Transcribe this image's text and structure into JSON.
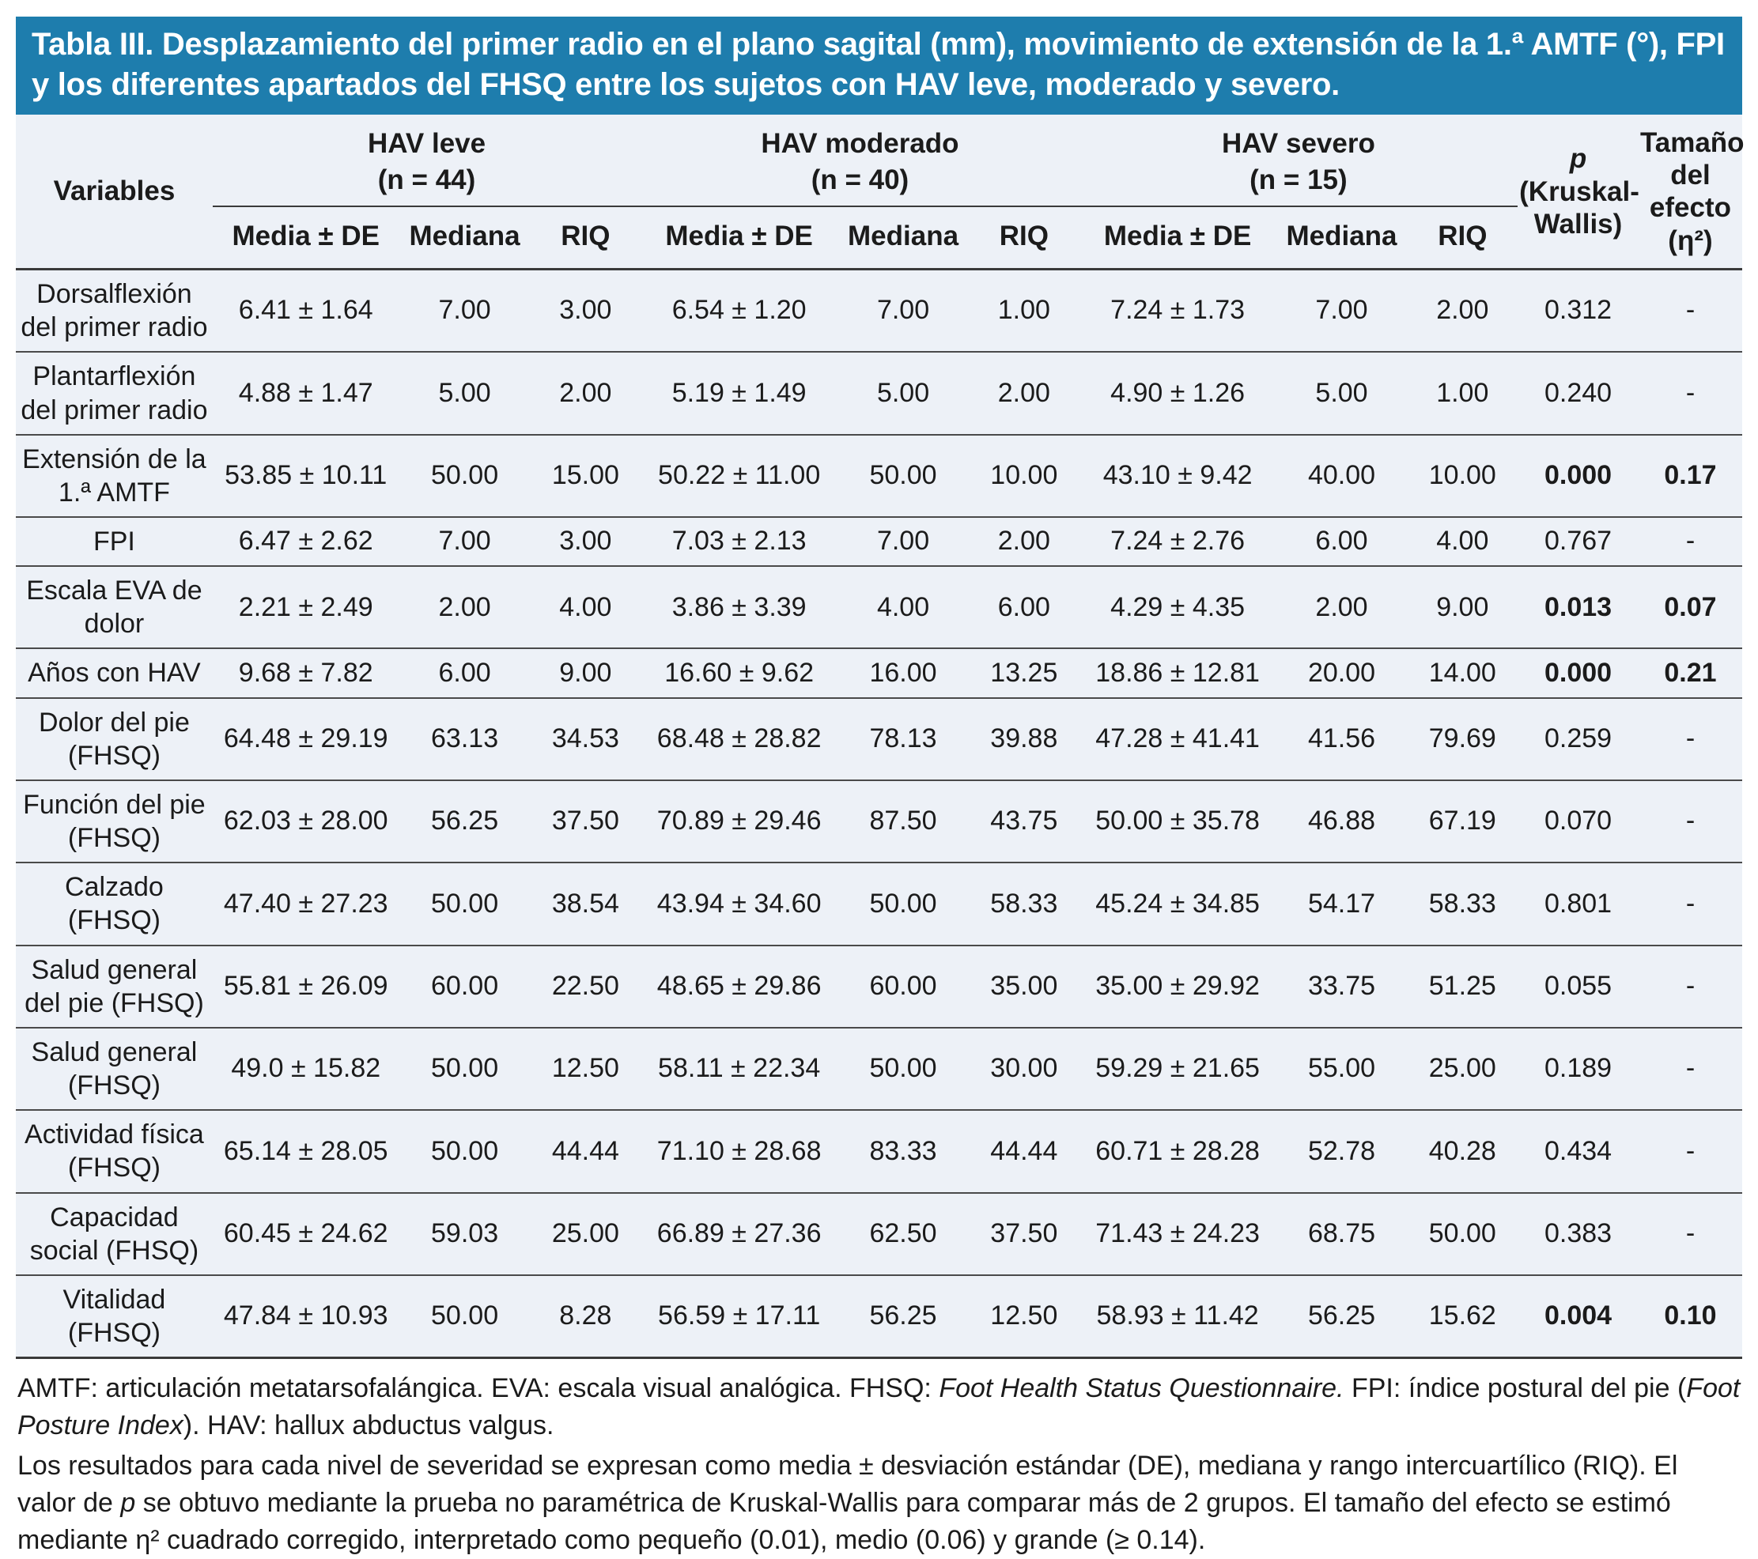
{
  "title": "Tabla III. Desplazamiento del primer radio en el plano sagital (mm), movimiento de extensión de la 1.ª AMTF (°), FPI y los diferentes apartados del FHSQ entre los sujetos con HAV leve, moderado y severo.",
  "colors": {
    "title_bar_bg": "#1e7dad",
    "table_bg": "#edf1f7",
    "rule_line": "#3a3a3a"
  },
  "table": {
    "variables_header": "Variables",
    "groups": [
      {
        "name": "HAV leve",
        "n": "(n = 44)"
      },
      {
        "name": "HAV moderado",
        "n": "(n = 40)"
      },
      {
        "name": "HAV severo",
        "n": "(n = 15)"
      }
    ],
    "stat_headers": [
      "Media ± DE",
      "Mediana",
      "RIQ"
    ],
    "p_header": [
      "p",
      "(Kruskal-",
      "Wallis)"
    ],
    "effect_header": [
      "Tamaño",
      "del",
      "efecto",
      "(η²)"
    ],
    "rows": [
      {
        "label": "Dorsalflexión del primer radio",
        "values": [
          "6.41 ± 1.64",
          "7.00",
          "3.00",
          "6.54 ± 1.20",
          "7.00",
          "1.00",
          "7.24 ± 1.73",
          "7.00",
          "2.00"
        ],
        "p": "0.312",
        "effect": "-",
        "significant": false
      },
      {
        "label": "Plantarflexión del primer radio",
        "values": [
          "4.88 ± 1.47",
          "5.00",
          "2.00",
          "5.19 ± 1.49",
          "5.00",
          "2.00",
          "4.90 ± 1.26",
          "5.00",
          "1.00"
        ],
        "p": "0.240",
        "effect": "-",
        "significant": false
      },
      {
        "label": "Extensión de la 1.ª AMTF",
        "values": [
          "53.85 ± 10.11",
          "50.00",
          "15.00",
          "50.22 ± 11.00",
          "50.00",
          "10.00",
          "43.10 ± 9.42",
          "40.00",
          "10.00"
        ],
        "p": "0.000",
        "effect": "0.17",
        "significant": true
      },
      {
        "label": "FPI",
        "values": [
          "6.47 ± 2.62",
          "7.00",
          "3.00",
          "7.03 ± 2.13",
          "7.00",
          "2.00",
          "7.24 ± 2.76",
          "6.00",
          "4.00"
        ],
        "p": "0.767",
        "effect": "-",
        "significant": false
      },
      {
        "label": "Escala EVA de dolor",
        "values": [
          "2.21 ± 2.49",
          "2.00",
          "4.00",
          "3.86 ± 3.39",
          "4.00",
          "6.00",
          "4.29 ± 4.35",
          "2.00",
          "9.00"
        ],
        "p": "0.013",
        "effect": "0.07",
        "significant": true
      },
      {
        "label": "Años con HAV",
        "values": [
          "9.68 ± 7.82",
          "6.00",
          "9.00",
          "16.60 ± 9.62",
          "16.00",
          "13.25",
          "18.86 ± 12.81",
          "20.00",
          "14.00"
        ],
        "p": "0.000",
        "effect": "0.21",
        "significant": true
      },
      {
        "label": "Dolor del pie (FHSQ)",
        "values": [
          "64.48 ± 29.19",
          "63.13",
          "34.53",
          "68.48 ± 28.82",
          "78.13",
          "39.88",
          "47.28 ± 41.41",
          "41.56",
          "79.69"
        ],
        "p": "0.259",
        "effect": "-",
        "significant": false
      },
      {
        "label": "Función del pie (FHSQ)",
        "values": [
          "62.03 ± 28.00",
          "56.25",
          "37.50",
          "70.89 ± 29.46",
          "87.50",
          "43.75",
          "50.00 ± 35.78",
          "46.88",
          "67.19"
        ],
        "p": "0.070",
        "effect": "-",
        "significant": false
      },
      {
        "label": "Calzado (FHSQ)",
        "values": [
          "47.40 ± 27.23",
          "50.00",
          "38.54",
          "43.94 ± 34.60",
          "50.00",
          "58.33",
          "45.24 ± 34.85",
          "54.17",
          "58.33"
        ],
        "p": "0.801",
        "effect": "-",
        "significant": false
      },
      {
        "label": "Salud general del pie (FHSQ)",
        "values": [
          "55.81 ± 26.09",
          "60.00",
          "22.50",
          "48.65 ± 29.86",
          "60.00",
          "35.00",
          "35.00 ± 29.92",
          "33.75",
          "51.25"
        ],
        "p": "0.055",
        "effect": "-",
        "significant": false
      },
      {
        "label": "Salud general (FHSQ)",
        "values": [
          "49.0 ± 15.82",
          "50.00",
          "12.50",
          "58.11 ± 22.34",
          "50.00",
          "30.00",
          "59.29 ± 21.65",
          "55.00",
          "25.00"
        ],
        "p": "0.189",
        "effect": "-",
        "significant": false
      },
      {
        "label": "Actividad física (FHSQ)",
        "values": [
          "65.14 ± 28.05",
          "50.00",
          "44.44",
          "71.10 ± 28.68",
          "83.33",
          "44.44",
          "60.71 ± 28.28",
          "52.78",
          "40.28"
        ],
        "p": "0.434",
        "effect": "-",
        "significant": false
      },
      {
        "label": "Capacidad social (FHSQ)",
        "values": [
          "60.45 ± 24.62",
          "59.03",
          "25.00",
          "66.89 ± 27.36",
          "62.50",
          "37.50",
          "71.43 ± 24.23",
          "68.75",
          "50.00"
        ],
        "p": "0.383",
        "effect": "-",
        "significant": false
      },
      {
        "label": "Vitalidad (FHSQ)",
        "values": [
          "47.84 ± 10.93",
          "50.00",
          "8.28",
          "56.59 ± 17.11",
          "56.25",
          "12.50",
          "58.93 ± 11.42",
          "56.25",
          "15.62"
        ],
        "p": "0.004",
        "effect": "0.10",
        "significant": true
      }
    ]
  },
  "footnotes": {
    "abbreviations": [
      {
        "text": "AMTF: articulación metatarsofalángica. EVA: escala visual analógica. FHSQ: ",
        "italic": false
      },
      {
        "text": "Foot Health Status Questionnaire.",
        "italic": true
      },
      {
        "text": " FPI: índice postural del pie (",
        "italic": false
      },
      {
        "text": "Foot Posture Index",
        "italic": true
      },
      {
        "text": "). HAV: hallux abductus valgus.",
        "italic": false
      }
    ],
    "methods": [
      {
        "text": "Los resultados para cada nivel de severidad se expresan como media ± desviación estándar (DE), mediana y rango intercuartílico (RIQ). El valor de ",
        "italic": false
      },
      {
        "text": "p",
        "italic": true
      },
      {
        "text": " se obtuvo mediante la prueba no paramétrica de Kruskal-Wallis para comparar más de 2 grupos. El tamaño del efecto se estimó mediante η² cuadrado corregido, interpretado como pequeño (0.01), medio (0.06) y grande (≥ 0.14).",
        "italic": false
      }
    ]
  }
}
